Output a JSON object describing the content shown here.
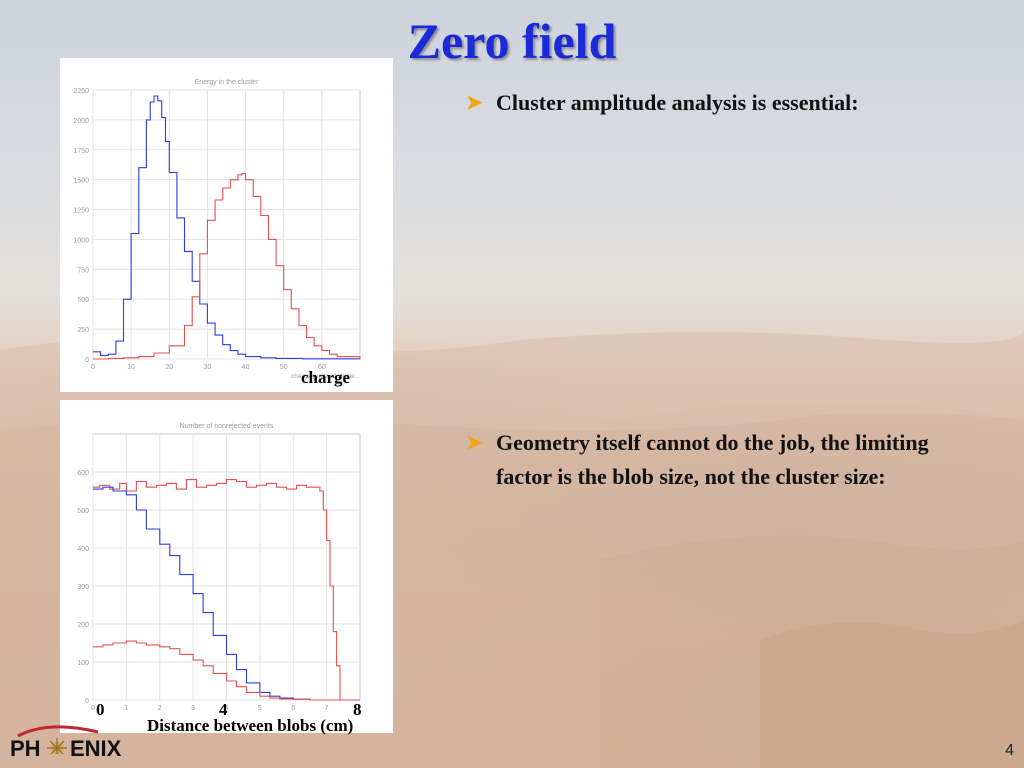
{
  "slide": {
    "title": "Zero field",
    "bullets": [
      "Cluster amplitude analysis is essential:",
      "Geometry itself cannot do the job, the limiting factor is the blob size, not the cluster size:"
    ],
    "page_number": "4",
    "logo": {
      "left": "PH",
      "right": "ENIX"
    }
  },
  "overlay_labels": {
    "charge": "charge",
    "tick_0": "0",
    "tick_4": "4",
    "tick_8": "8",
    "distance": "Distance between blobs (cm)"
  },
  "chart_data": [
    {
      "type": "line",
      "title": "Energy in the cluster",
      "xlabel": "charge (units of single...",
      "xlim": [
        0,
        70
      ],
      "ylim": [
        0,
        2250
      ],
      "xticks": [
        "0",
        "10",
        "20",
        "30",
        "40",
        "50",
        "60"
      ],
      "yticks": [
        "0",
        "250",
        "500",
        "750",
        "1000",
        "1250",
        "1500",
        "1750",
        "2000",
        "2250"
      ],
      "grid": true,
      "series": [
        {
          "color": "#2b3ddc",
          "x": [
            0,
            2,
            4,
            6,
            8,
            10,
            12,
            14,
            15,
            16,
            17,
            18,
            19,
            20,
            22,
            24,
            26,
            28,
            30,
            32,
            34,
            36,
            38,
            40,
            44,
            48,
            55,
            70
          ],
          "values": [
            60,
            30,
            40,
            150,
            500,
            1050,
            1600,
            2000,
            2150,
            2200,
            2160,
            2020,
            1820,
            1560,
            1180,
            900,
            650,
            460,
            300,
            200,
            120,
            70,
            40,
            20,
            10,
            5,
            2,
            0
          ]
        },
        {
          "color": "#e55050",
          "x": [
            0,
            4,
            8,
            12,
            16,
            20,
            24,
            26,
            28,
            30,
            32,
            34,
            36,
            38,
            39,
            40,
            42,
            44,
            46,
            48,
            50,
            52,
            54,
            56,
            58,
            60,
            62,
            64,
            70
          ],
          "values": [
            0,
            5,
            10,
            20,
            50,
            110,
            280,
            520,
            880,
            1160,
            1330,
            1430,
            1500,
            1540,
            1550,
            1500,
            1360,
            1200,
            1000,
            780,
            580,
            420,
            280,
            180,
            110,
            70,
            40,
            20,
            5
          ]
        }
      ]
    },
    {
      "type": "line",
      "title": "Number of nonrejected events",
      "xlim": [
        0,
        8
      ],
      "ylim": [
        0,
        700
      ],
      "xticks": [
        "0",
        "1",
        "2",
        "3",
        "4",
        "5",
        "6",
        "7"
      ],
      "yticks": [
        "0",
        "100",
        "200",
        "300",
        "400",
        "500",
        "600"
      ],
      "grid": true,
      "series": [
        {
          "color": "#e55050",
          "x": [
            0.0,
            0.2,
            0.5,
            0.8,
            1.0,
            1.3,
            1.6,
            1.9,
            2.2,
            2.5,
            2.8,
            3.1,
            3.4,
            3.7,
            4.0,
            4.3,
            4.6,
            4.9,
            5.2,
            5.5,
            5.8,
            6.1,
            6.4,
            6.7,
            6.8,
            6.9,
            7.0,
            7.1,
            7.2,
            7.3,
            7.4,
            8.0
          ],
          "values": [
            560,
            565,
            555,
            570,
            550,
            575,
            560,
            565,
            570,
            555,
            580,
            560,
            565,
            570,
            580,
            575,
            560,
            565,
            570,
            560,
            555,
            565,
            560,
            560,
            550,
            500,
            420,
            300,
            180,
            90,
            0,
            0
          ]
        },
        {
          "color": "#2b3ddc",
          "x": [
            0.0,
            0.3,
            0.6,
            1.0,
            1.3,
            1.6,
            2.0,
            2.3,
            2.6,
            3.0,
            3.3,
            3.6,
            4.0,
            4.3,
            4.6,
            5.0,
            5.3,
            5.6,
            6.0,
            6.5,
            7.0,
            8.0
          ],
          "values": [
            555,
            560,
            550,
            540,
            500,
            450,
            410,
            380,
            330,
            280,
            230,
            170,
            120,
            80,
            45,
            20,
            10,
            5,
            2,
            0,
            0,
            0
          ]
        },
        {
          "color": "#e55050",
          "x": [
            0.0,
            0.3,
            0.6,
            1.0,
            1.3,
            1.6,
            2.0,
            2.3,
            2.6,
            3.0,
            3.3,
            3.6,
            4.0,
            4.3,
            4.6,
            5.0,
            5.3,
            5.6,
            6.0,
            6.5,
            7.0,
            8.0
          ],
          "values": [
            140,
            145,
            150,
            155,
            150,
            145,
            140,
            135,
            120,
            105,
            90,
            70,
            50,
            35,
            20,
            10,
            5,
            3,
            2,
            0,
            0,
            0
          ]
        }
      ]
    }
  ]
}
